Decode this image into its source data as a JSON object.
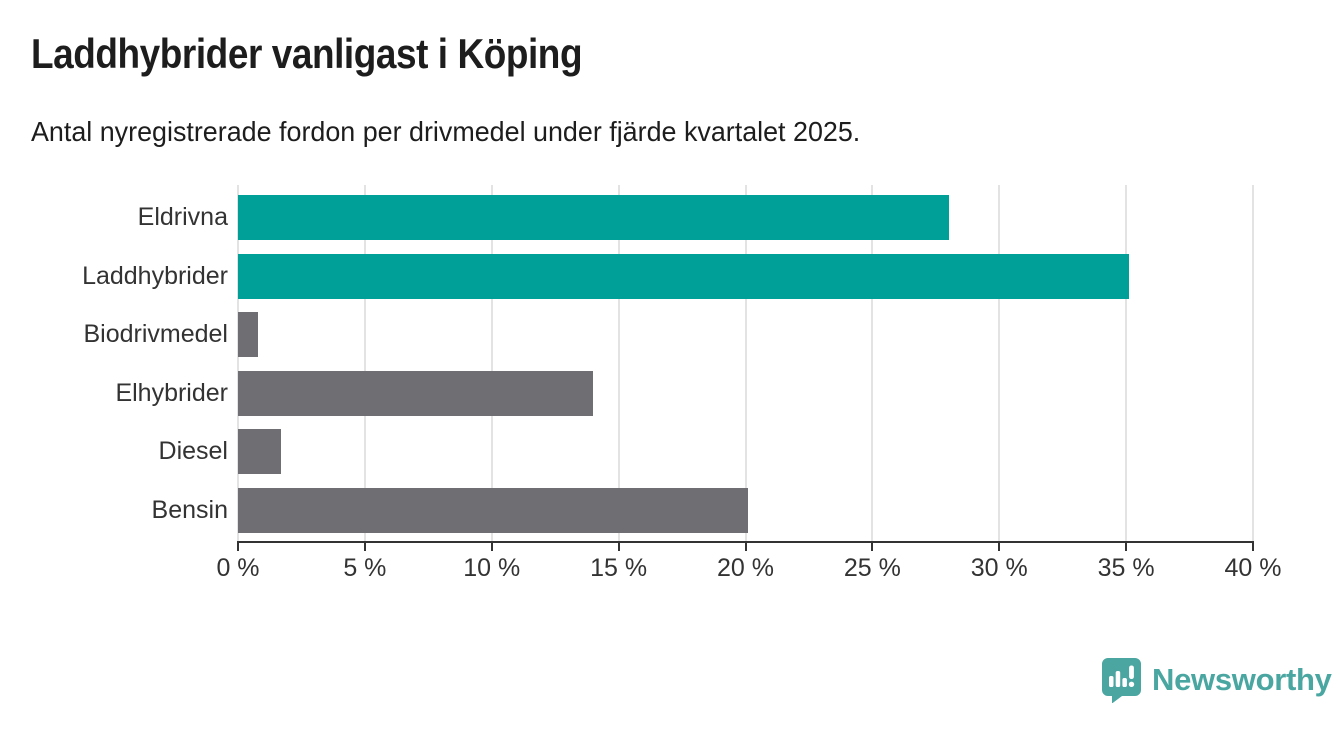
{
  "header": {
    "title": "Laddhybrider vanligast i Köping",
    "subtitle": "Antal nyregistrerade fordon per drivmedel under fjärde kvartalet 2025."
  },
  "chart_data": {
    "type": "bar",
    "orientation": "horizontal",
    "title": "Laddhybrider vanligast i Köping",
    "subtitle": "Antal nyregistrerade fordon per drivmedel under fjärde kvartalet 2025.",
    "categories": [
      "Eldrivna",
      "Laddhybrider",
      "Biodrivmedel",
      "Elhybrider",
      "Diesel",
      "Bensin"
    ],
    "values": [
      28,
      35.1,
      0.8,
      14,
      1.7,
      20.1
    ],
    "unit": "%",
    "xlim": [
      0,
      40
    ],
    "x_ticks": [
      0,
      5,
      10,
      15,
      20,
      25,
      30,
      35,
      40
    ],
    "x_tick_labels": [
      "0 %",
      "5 %",
      "10 %",
      "15 %",
      "20 %",
      "25 %",
      "30 %",
      "35 %",
      "40 %"
    ],
    "grid": true,
    "legend": false,
    "bar_colors": [
      "#00a099",
      "#00a099",
      "#6e6e73",
      "#6e6e73",
      "#6e6e73",
      "#6e6e73"
    ],
    "highlight_color": "#00a099",
    "default_color": "#6e6e73"
  },
  "footer": {
    "brand": "Newsworthy"
  },
  "colors": {
    "highlight_teal": "#00a099",
    "bar_gray": "#6e6e73",
    "gridline": "#e3e3e3",
    "axis": "#333333",
    "text": "#1d1d1d",
    "brand_teal": "#4aa6a1"
  }
}
